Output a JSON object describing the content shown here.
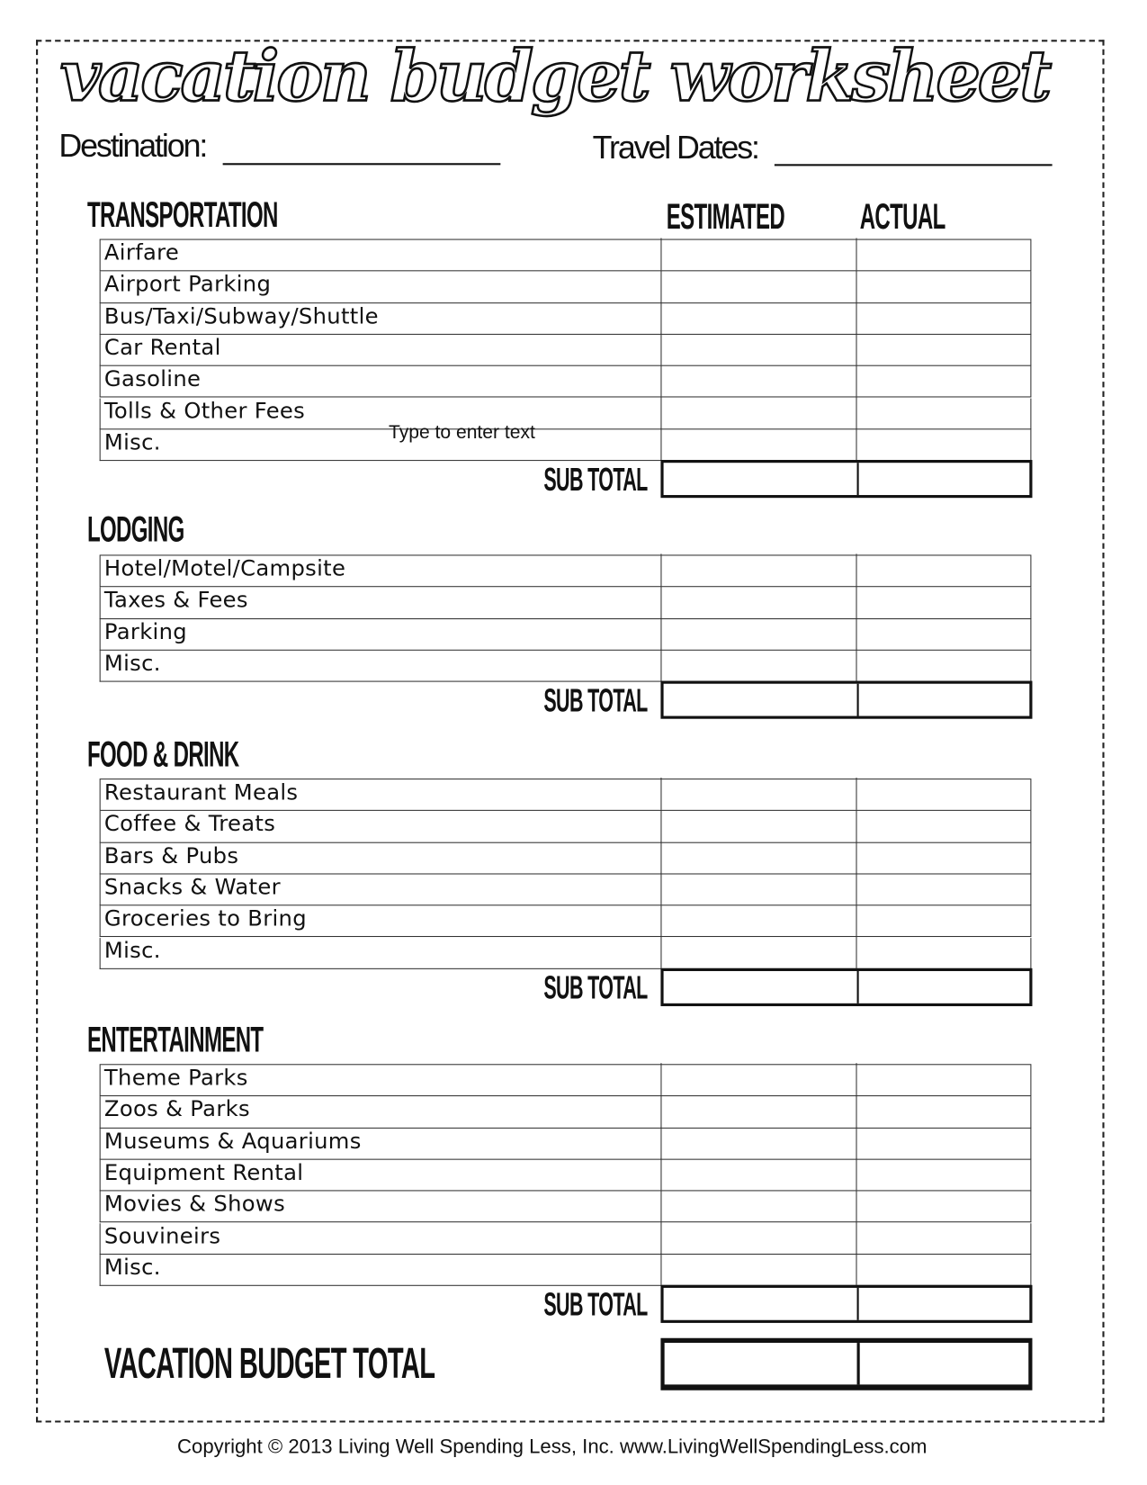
{
  "title": "vacation budget worksheet",
  "header": {
    "destination_label": "Destination:",
    "destination_value": "",
    "travel_dates_label": "Travel Dates:",
    "travel_dates_value": ""
  },
  "columns": {
    "estimated": "ESTIMATED",
    "actual": "ACTUAL"
  },
  "subtotal_label": "SUB TOTAL",
  "sections": [
    {
      "title": "TRANSPORTATION",
      "items": [
        "Airfare",
        "Airport Parking",
        "Bus/Taxi/Subway/Shuttle",
        "Car Rental",
        "Gasoline",
        "Tolls & Other Fees",
        "Misc."
      ]
    },
    {
      "title": "LODGING",
      "items": [
        "Hotel/Motel/Campsite",
        "Taxes & Fees",
        "Parking",
        "Misc."
      ]
    },
    {
      "title": "FOOD & DRINK",
      "items": [
        "Restaurant Meals",
        "Coffee & Treats",
        "Bars & Pubs",
        "Snacks & Water",
        "Groceries to Bring",
        "Misc."
      ]
    },
    {
      "title": "ENTERTAINMENT",
      "items": [
        "Theme Parks",
        "Zoos & Parks",
        "Museums & Aquariums",
        "Equipment Rental",
        "Movies & Shows",
        "Souvineirs",
        "Misc."
      ]
    }
  ],
  "grand_total_label": "VACATION BUDGET TOTAL",
  "text_field_placeholder": "Type to enter text",
  "footer": "Copyright © 2013 Living Well Spending Less, Inc.  www.LivingWellSpendingLess.com"
}
